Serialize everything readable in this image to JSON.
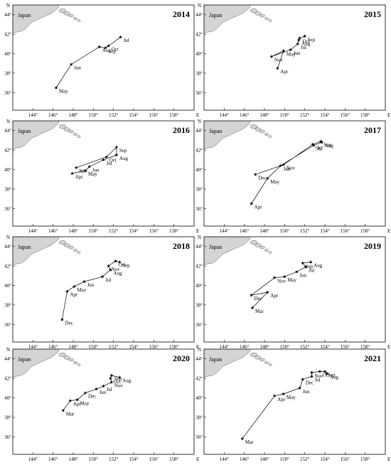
{
  "map": {
    "land_label": "Japan",
    "lon_ticks": [
      144,
      146,
      148,
      150,
      152,
      154,
      156,
      158
    ],
    "lon_tick_labels": [
      "144°",
      "146°",
      "148°",
      "150°",
      "152°",
      "154°",
      "156°",
      "158°"
    ],
    "lat_ticks": [
      36,
      38,
      40,
      42,
      44
    ],
    "lat_tick_labels": [
      "36°",
      "38°",
      "40°",
      "42°",
      "44°"
    ],
    "lon_range": [
      142,
      160
    ],
    "lat_range": [
      34.2,
      45
    ],
    "north_label": "N",
    "east_label": "E",
    "colors": {
      "land": "#d4d4d4",
      "line": "#000000"
    }
  },
  "panels": [
    {
      "year": "2014",
      "points": [
        {
          "label": "May",
          "lon": 146.3,
          "lat": 36.5
        },
        {
          "label": "Jun",
          "lon": 147.8,
          "lat": 38.9
        },
        {
          "label": "Aug",
          "lon": 150.6,
          "lat": 40.7
        },
        {
          "label": "Sep",
          "lon": 151.2,
          "lat": 40.6
        },
        {
          "label": "Oct",
          "lon": 151.5,
          "lat": 40.8
        },
        {
          "label": "Jul",
          "lon": 152.7,
          "lat": 41.7
        }
      ]
    },
    {
      "year": "2015",
      "points": [
        {
          "label": "Apr",
          "lon": 149.3,
          "lat": 38.5
        },
        {
          "label": "May",
          "lon": 149.9,
          "lat": 40.3
        },
        {
          "label": "Nov",
          "lon": 148.7,
          "lat": 39.7
        },
        {
          "label": "Jun",
          "lon": 150.6,
          "lat": 40.4
        },
        {
          "label": "Jul",
          "lon": 151.3,
          "lat": 41.0
        },
        {
          "label": "Aug",
          "lon": 151.4,
          "lat": 41.4
        },
        {
          "label": "Oct",
          "lon": 151.5,
          "lat": 41.6
        },
        {
          "label": "Sep",
          "lon": 152.0,
          "lat": 41.8
        }
      ]
    },
    {
      "year": "2016",
      "points": [
        {
          "label": "Apr",
          "lon": 147.9,
          "lat": 39.6
        },
        {
          "label": "May",
          "lon": 149.2,
          "lat": 39.9
        },
        {
          "label": "Jun",
          "lon": 149.6,
          "lat": 40.3
        },
        {
          "label": "Jul",
          "lon": 151.0,
          "lat": 41.0
        },
        {
          "label": "Aug",
          "lon": 152.3,
          "lat": 41.5
        },
        {
          "label": "Sep",
          "lon": 152.3,
          "lat": 42.3
        },
        {
          "label": "Oct",
          "lon": 151.3,
          "lat": 41.3
        },
        {
          "label": "Nov",
          "lon": 148.3,
          "lat": 40.2
        }
      ]
    },
    {
      "year": "2017",
      "points": [
        {
          "label": "Apr",
          "lon": 146.7,
          "lat": 36.5
        },
        {
          "label": "May",
          "lon": 148.3,
          "lat": 39.1
        },
        {
          "label": "Jun",
          "lon": 149.6,
          "lat": 40.4
        },
        {
          "label": "Jul",
          "lon": 152.9,
          "lat": 42.5
        },
        {
          "label": "Aug",
          "lon": 153.7,
          "lat": 42.8
        },
        {
          "label": "Sep",
          "lon": 153.6,
          "lat": 42.9
        },
        {
          "label": "Oct",
          "lon": 152.8,
          "lat": 42.6
        },
        {
          "label": "Nov",
          "lon": 149.9,
          "lat": 40.5
        },
        {
          "label": "Dec",
          "lon": 147.1,
          "lat": 39.5
        }
      ]
    },
    {
      "year": "2018",
      "points": [
        {
          "label": "Dec",
          "lon": 146.9,
          "lat": 36.5
        },
        {
          "label": "Apr",
          "lon": 147.4,
          "lat": 39.4
        },
        {
          "label": "May",
          "lon": 148.1,
          "lat": 39.9
        },
        {
          "label": "Jun",
          "lon": 149.1,
          "lat": 40.4
        },
        {
          "label": "Jul",
          "lon": 150.9,
          "lat": 40.9
        },
        {
          "label": "Aug",
          "lon": 151.7,
          "lat": 41.6
        },
        {
          "label": "Nov",
          "lon": 151.5,
          "lat": 42.0
        },
        {
          "label": "Oct",
          "lon": 152.2,
          "lat": 42.5
        },
        {
          "label": "Sep",
          "lon": 152.6,
          "lat": 42.4
        }
      ]
    },
    {
      "year": "2019",
      "points": [
        {
          "label": "Mar",
          "lon": 146.8,
          "lat": 37.7
        },
        {
          "label": "Apr",
          "lon": 148.3,
          "lat": 39.3
        },
        {
          "label": "Dec",
          "lon": 146.7,
          "lat": 39.0
        },
        {
          "label": "Nov",
          "lon": 149.0,
          "lat": 40.8
        },
        {
          "label": "May",
          "lon": 150.0,
          "lat": 40.9
        },
        {
          "label": "Jun",
          "lon": 151.2,
          "lat": 41.4
        },
        {
          "label": "Jul",
          "lon": 152.1,
          "lat": 41.9
        },
        {
          "label": "Sep",
          "lon": 151.8,
          "lat": 42.3
        },
        {
          "label": "Aug",
          "lon": 152.6,
          "lat": 42.4
        }
      ]
    },
    {
      "year": "2020",
      "points": [
        {
          "label": "Mar",
          "lon": 147.0,
          "lat": 38.7
        },
        {
          "label": "Apr",
          "lon": 147.7,
          "lat": 39.7
        },
        {
          "label": "May",
          "lon": 148.4,
          "lat": 39.8
        },
        {
          "label": "Dec",
          "lon": 149.2,
          "lat": 40.5
        },
        {
          "label": "Jun",
          "lon": 150.3,
          "lat": 40.9
        },
        {
          "label": "Jul",
          "lon": 151.0,
          "lat": 41.2
        },
        {
          "label": "Nov",
          "lon": 151.8,
          "lat": 41.6
        },
        {
          "label": "Oct",
          "lon": 151.7,
          "lat": 42.0
        },
        {
          "label": "Sep",
          "lon": 151.8,
          "lat": 42.3
        },
        {
          "label": "Aug",
          "lon": 152.6,
          "lat": 42.1
        }
      ]
    },
    {
      "year": "2021",
      "points": [
        {
          "label": "Mar",
          "lon": 145.8,
          "lat": 35.8
        },
        {
          "label": "Apr",
          "lon": 149.0,
          "lat": 40.2
        },
        {
          "label": "May",
          "lon": 149.9,
          "lat": 40.4
        },
        {
          "label": "Jun",
          "lon": 151.5,
          "lat": 41.0
        },
        {
          "label": "Dec",
          "lon": 151.8,
          "lat": 41.9
        },
        {
          "label": "Jul",
          "lon": 152.7,
          "lat": 42.2
        },
        {
          "label": "Nov",
          "lon": 152.7,
          "lat": 42.6
        },
        {
          "label": "Oct",
          "lon": 153.5,
          "lat": 42.7
        },
        {
          "label": "Sep",
          "lon": 154.0,
          "lat": 42.7
        },
        {
          "label": "Aug",
          "lon": 154.2,
          "lat": 42.5
        }
      ]
    }
  ]
}
